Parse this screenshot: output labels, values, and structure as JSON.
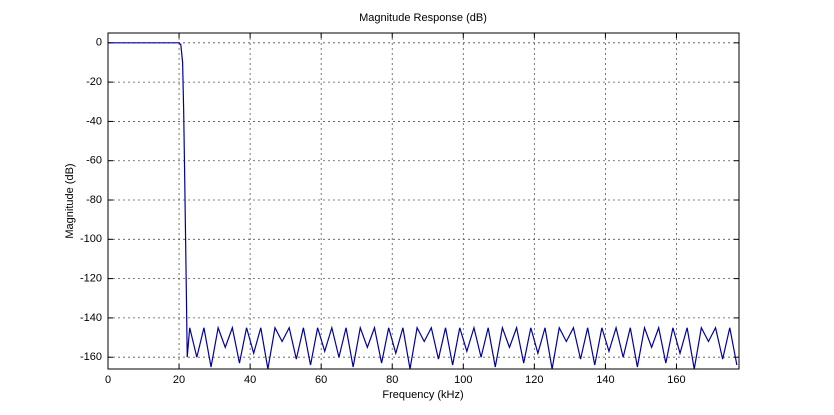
{
  "chart_data": {
    "type": "line",
    "title": "Magnitude Response (dB)",
    "xlabel": "Frequency (kHz)",
    "ylabel": "Magnitude (dB)",
    "color": "#0000a0",
    "grid": true,
    "xlim": [
      0,
      177.6
    ],
    "ylim": [
      -166,
      5
    ],
    "xticks": [
      0,
      20,
      40,
      60,
      80,
      100,
      120,
      140,
      160
    ],
    "yticks": [
      0,
      -20,
      -40,
      -60,
      -80,
      -100,
      -120,
      -140,
      -160
    ],
    "x": [
      0,
      10,
      20,
      20.5,
      21,
      21.3,
      21.6,
      22,
      22.3,
      23,
      25,
      27,
      29,
      31,
      33,
      35,
      37,
      39,
      41,
      43,
      45,
      47,
      49,
      51,
      53,
      55,
      57,
      59,
      61,
      63,
      65,
      67,
      69,
      71,
      73,
      75,
      77,
      79,
      81,
      83,
      85,
      87,
      89,
      91,
      93,
      95,
      97,
      99,
      101,
      103,
      105,
      107,
      109,
      111,
      113,
      115,
      117,
      119,
      121,
      123,
      125,
      127,
      129,
      131,
      133,
      135,
      137,
      139,
      141,
      143,
      145,
      147,
      149,
      151,
      153,
      155,
      157,
      159,
      161,
      163,
      165,
      167,
      169,
      171,
      173,
      175,
      177
    ],
    "values": [
      0,
      0,
      0,
      -1,
      -10,
      -35,
      -70,
      -120,
      -160,
      -145,
      -160,
      -145,
      -165,
      -145,
      -155,
      -145,
      -163,
      -145,
      -158,
      -145,
      -166,
      -145,
      -152,
      -145,
      -161,
      -145,
      -164,
      -145,
      -157,
      -145,
      -160,
      -145,
      -165,
      -145,
      -155,
      -145,
      -163,
      -145,
      -158,
      -145,
      -166,
      -145,
      -152,
      -145,
      -161,
      -145,
      -164,
      -145,
      -157,
      -145,
      -160,
      -145,
      -165,
      -145,
      -155,
      -145,
      -163,
      -145,
      -158,
      -145,
      -166,
      -145,
      -152,
      -145,
      -161,
      -145,
      -164,
      -145,
      -157,
      -145,
      -160,
      -145,
      -165,
      -145,
      -155,
      -145,
      -163,
      -145,
      -158,
      -145,
      -166,
      -145,
      -152,
      -145,
      -161,
      -145,
      -164
    ]
  }
}
